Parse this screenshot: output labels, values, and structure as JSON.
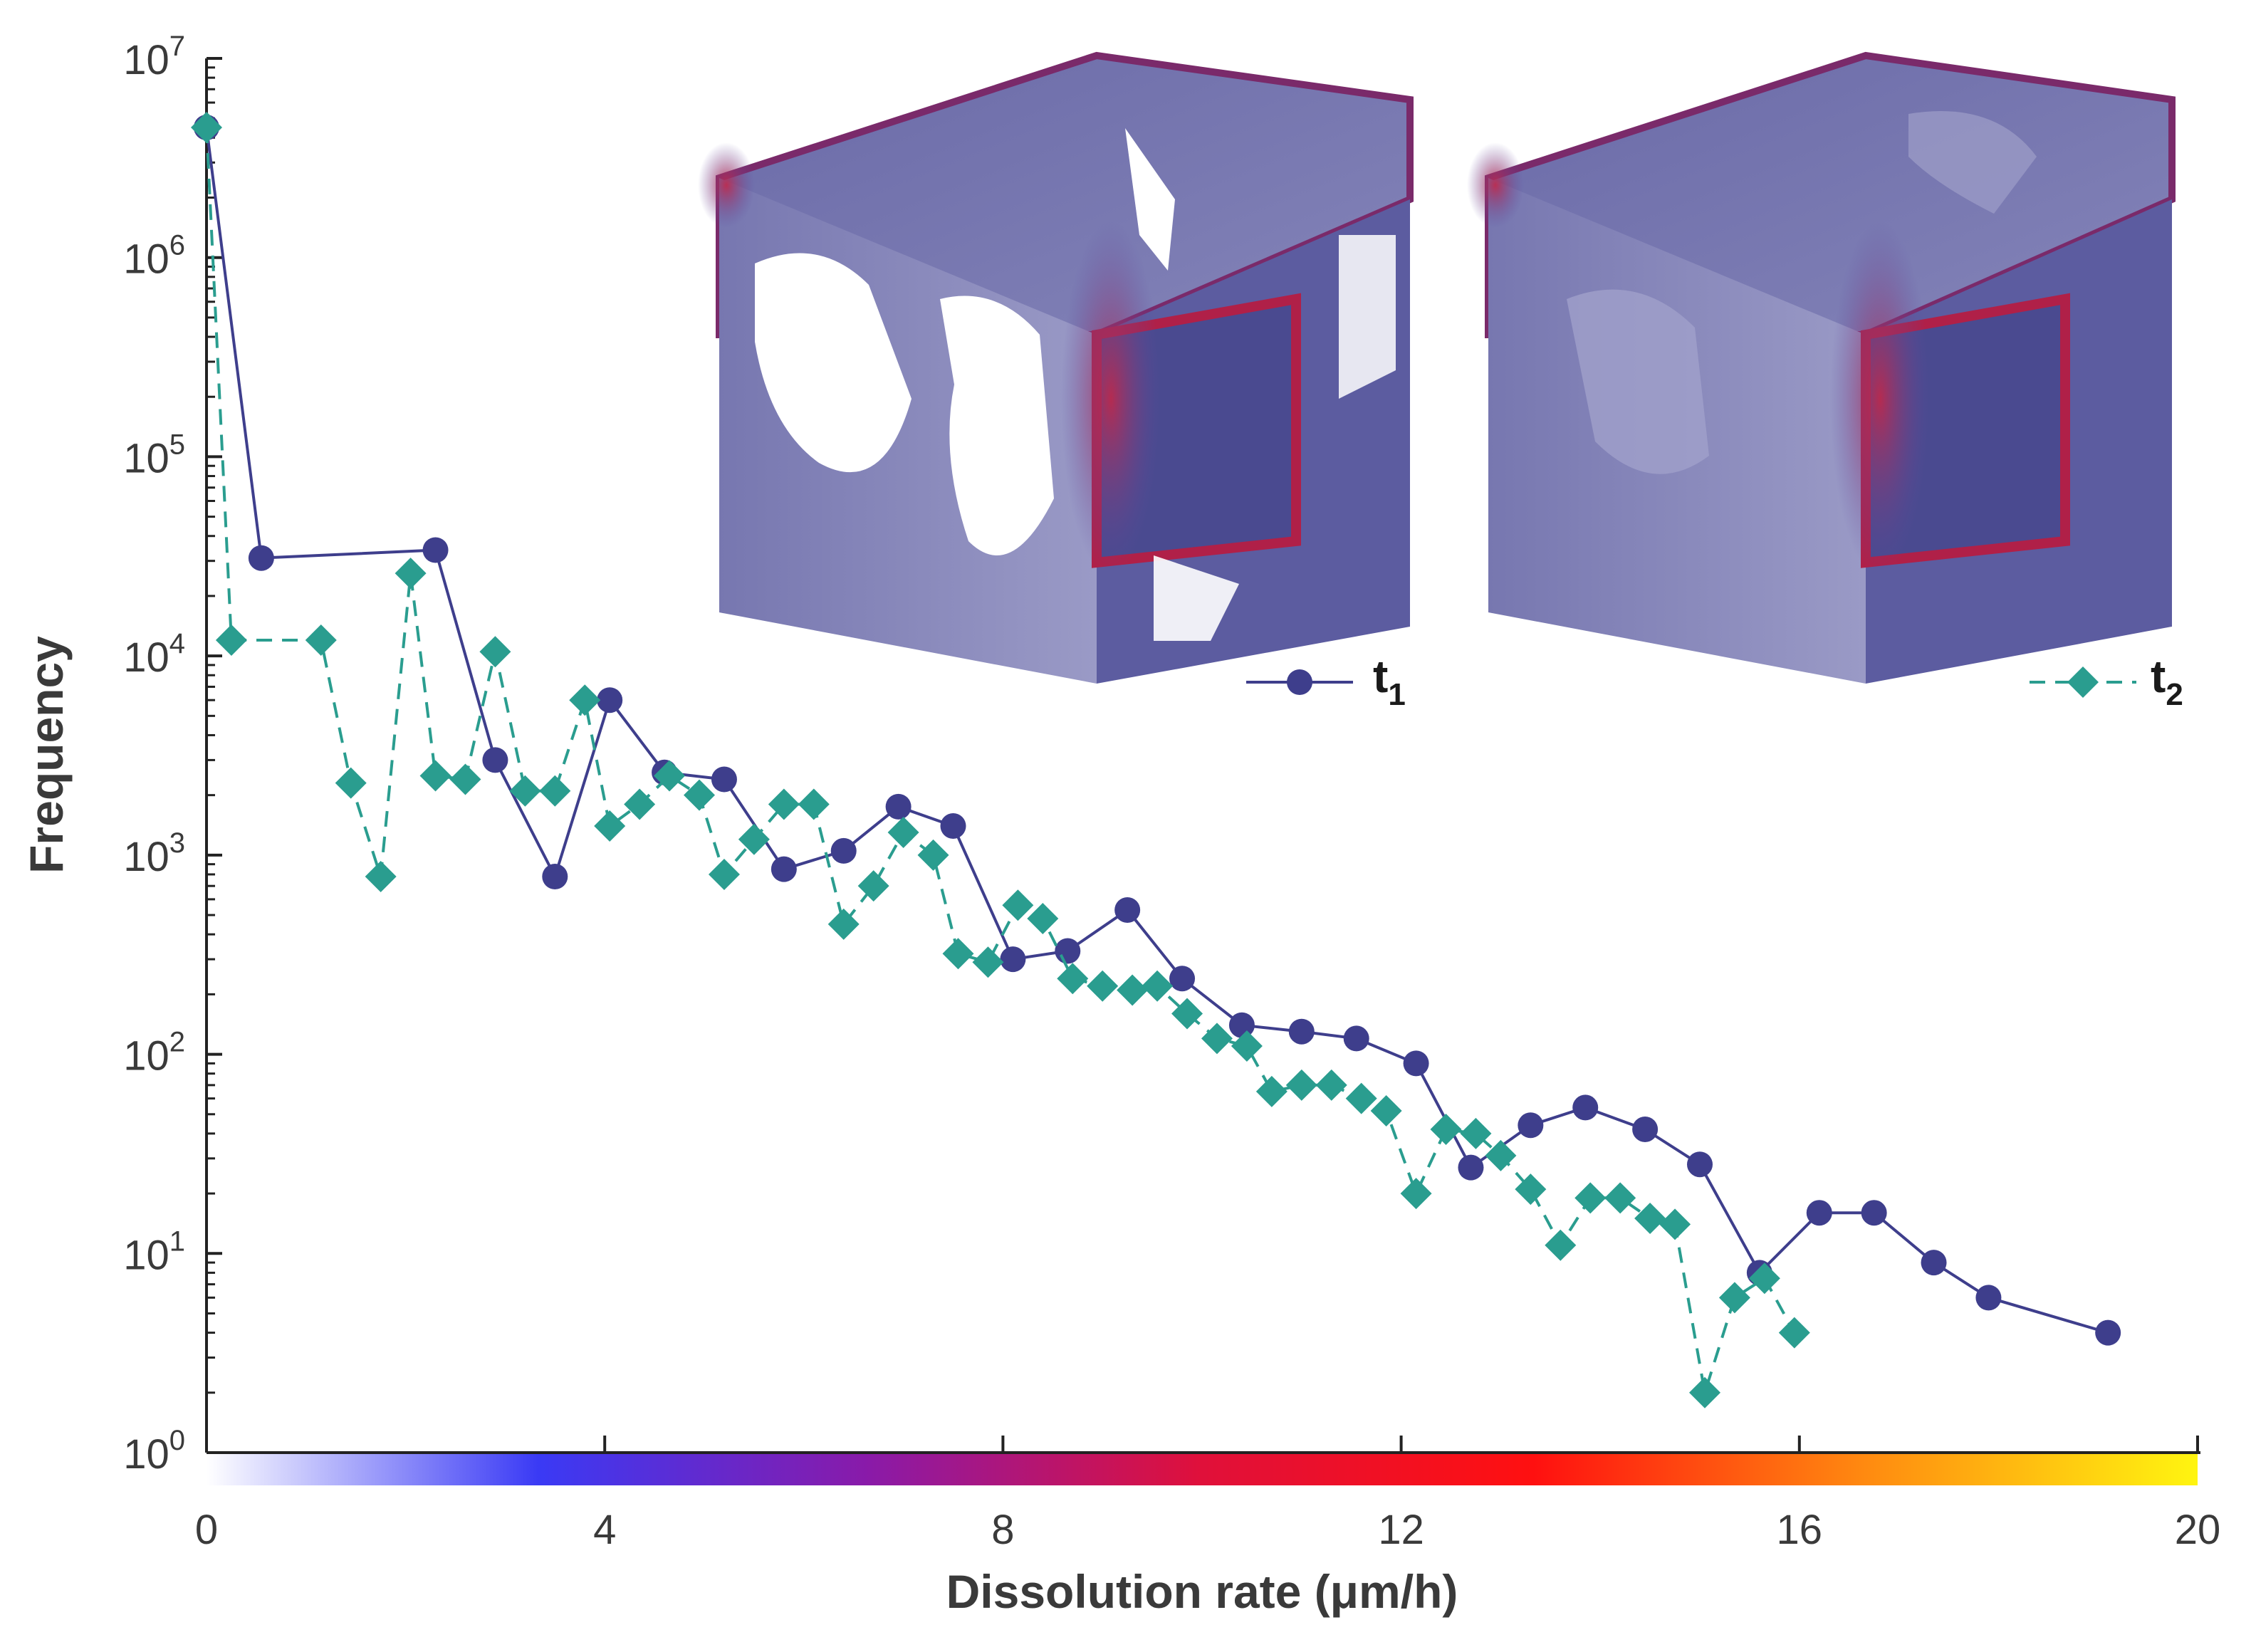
{
  "chart_data": {
    "type": "line",
    "title": "",
    "xlabel": "Dissolution rate (μm/h)",
    "ylabel": "Frequency",
    "xlim": [
      0,
      20
    ],
    "ylim": [
      1,
      10000000
    ],
    "yscale": "log",
    "xticks": [
      0,
      4,
      8,
      12,
      16,
      20
    ],
    "yticks": [
      {
        "value": 1,
        "base": "10",
        "exp": "0"
      },
      {
        "value": 10,
        "base": "10",
        "exp": "1"
      },
      {
        "value": 100,
        "base": "10",
        "exp": "2"
      },
      {
        "value": 1000,
        "base": "10",
        "exp": "3"
      },
      {
        "value": 10000,
        "base": "10",
        "exp": "4"
      },
      {
        "value": 100000,
        "base": "10",
        "exp": "5"
      },
      {
        "value": 1000000,
        "base": "10",
        "exp": "6"
      },
      {
        "value": 10000000,
        "base": "10",
        "exp": "7"
      }
    ],
    "colorbar": {
      "min": 0,
      "max": 20,
      "colors": [
        "#ffffff",
        "#3a3af5",
        "#8a1aa8",
        "#e0103a",
        "#ff1010",
        "#ff8a10",
        "#fff510"
      ]
    },
    "legend": {
      "placement": "top-right"
    },
    "series": [
      {
        "name": "t1",
        "label_main": "t",
        "label_sub": "1",
        "color": "#3e3e8c",
        "marker": "circle",
        "linestyle": "solid",
        "x": [
          0,
          0.55,
          2.3,
          2.9,
          3.5,
          4.05,
          4.6,
          5.2,
          5.8,
          6.4,
          6.95,
          7.5,
          8.1,
          8.65,
          9.25,
          9.8,
          10.4,
          11.0,
          11.55,
          12.15,
          12.7,
          13.3,
          13.85,
          14.45,
          15.0,
          15.6,
          16.2,
          16.75,
          17.35,
          17.9,
          19.1
        ],
        "y": [
          4500000,
          31000,
          34000,
          3000,
          780,
          6000,
          2600,
          2400,
          850,
          1050,
          1750,
          1400,
          300,
          330,
          530,
          240,
          140,
          130,
          120,
          90,
          27,
          44,
          54,
          42,
          28,
          8,
          16,
          16,
          9,
          6,
          4
        ]
      },
      {
        "name": "t2",
        "label_main": "t",
        "label_sub": "2",
        "color": "#2a9d8f",
        "marker": "diamond",
        "linestyle": "dashed",
        "x": [
          0,
          0.25,
          1.15,
          1.45,
          1.75,
          2.05,
          2.3,
          2.6,
          2.9,
          3.2,
          3.5,
          3.8,
          4.05,
          4.35,
          4.65,
          4.95,
          5.2,
          5.5,
          5.8,
          6.1,
          6.4,
          6.7,
          7.0,
          7.3,
          7.55,
          7.85,
          8.15,
          8.4,
          8.7,
          9.0,
          9.3,
          9.55,
          9.85,
          10.15,
          10.45,
          10.7,
          11.0,
          11.3,
          11.6,
          11.85,
          12.15,
          12.45,
          12.75,
          13.0,
          13.3,
          13.6,
          13.9,
          14.2,
          14.5,
          14.75,
          15.05,
          15.35,
          15.65,
          15.95
        ],
        "y": [
          4500000,
          12000,
          12000,
          2300,
          780,
          26000,
          2500,
          2400,
          10500,
          2100,
          2100,
          6000,
          1400,
          1800,
          2500,
          2000,
          800,
          1200,
          1800,
          1800,
          450,
          700,
          1300,
          1000,
          320,
          290,
          560,
          480,
          240,
          220,
          210,
          220,
          160,
          120,
          110,
          65,
          70,
          70,
          60,
          52,
          20,
          42,
          40,
          31,
          21,
          11,
          19,
          19,
          15,
          14,
          2,
          6,
          7.5,
          4
        ]
      }
    ]
  }
}
